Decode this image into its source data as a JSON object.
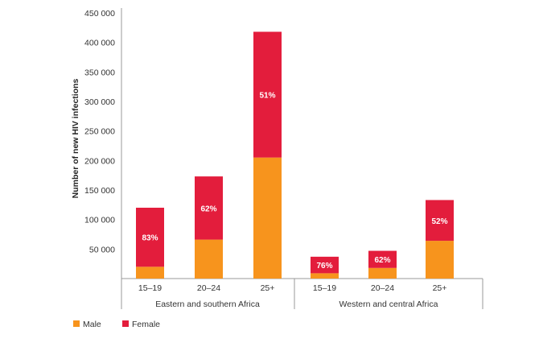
{
  "chart_data": {
    "type": "bar",
    "stacked": true,
    "ylabel": "Number of new HIV infections",
    "ylim": [
      0,
      450000
    ],
    "yticks": [
      50000,
      100000,
      150000,
      200000,
      250000,
      300000,
      350000,
      400000,
      450000
    ],
    "ytick_labels": [
      "50 000",
      "100 000",
      "150 000",
      "200 000",
      "250 000",
      "300 000",
      "350 000",
      "400 000",
      "450 000"
    ],
    "groups": [
      {
        "name": "Eastern and southern Africa",
        "categories": [
          "15–19",
          "20–24",
          "25+"
        ]
      },
      {
        "name": "Western and central Africa",
        "categories": [
          "15–19",
          "20–24",
          "25+"
        ]
      }
    ],
    "series": [
      {
        "name": "Male",
        "color": "#f7941d",
        "values": [
          20000,
          66000,
          205000,
          9000,
          18000,
          64000
        ]
      },
      {
        "name": "Female",
        "color": "#e31d3c",
        "values": [
          100000,
          107000,
          213000,
          28000,
          29000,
          69000
        ]
      }
    ],
    "annotations": [
      "83%",
      "62%",
      "51%",
      "76%",
      "62%",
      "52%"
    ],
    "legend_position": "bottom-left",
    "grid": false
  }
}
